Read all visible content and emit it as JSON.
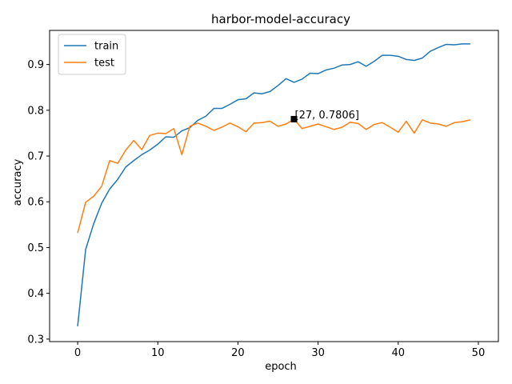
{
  "chart_data": {
    "type": "line",
    "title": "harbor-model-accuracy",
    "xlabel": "epoch",
    "ylabel": "accuracy",
    "xlim": [
      -3.5,
      52.5
    ],
    "ylim": [
      0.2945,
      0.9745
    ],
    "xticks": [
      0,
      10,
      20,
      30,
      40,
      50
    ],
    "yticks": [
      0.3,
      0.4,
      0.5,
      0.6,
      0.7,
      0.8,
      0.9
    ],
    "ytick_labels": [
      "0.3",
      "0.4",
      "0.5",
      "0.6",
      "0.7",
      "0.8",
      "0.9"
    ],
    "legend_position": "upper-left",
    "grid": false,
    "x": [
      0,
      1,
      2,
      3,
      4,
      5,
      6,
      7,
      8,
      9,
      10,
      11,
      12,
      13,
      14,
      15,
      16,
      17,
      18,
      19,
      20,
      21,
      22,
      23,
      24,
      25,
      26,
      27,
      28,
      29,
      30,
      31,
      32,
      33,
      34,
      35,
      36,
      37,
      38,
      39,
      40,
      41,
      42,
      43,
      44,
      45,
      46,
      47,
      48,
      49
    ],
    "series": [
      {
        "name": "train",
        "color": "#1f77b4",
        "values": [
          0.328,
          0.496,
          0.552,
          0.597,
          0.628,
          0.649,
          0.676,
          0.69,
          0.703,
          0.713,
          0.726,
          0.742,
          0.741,
          0.755,
          0.762,
          0.778,
          0.787,
          0.804,
          0.804,
          0.813,
          0.823,
          0.825,
          0.838,
          0.836,
          0.841,
          0.854,
          0.869,
          0.861,
          0.868,
          0.881,
          0.88,
          0.888,
          0.892,
          0.899,
          0.9,
          0.906,
          0.896,
          0.907,
          0.92,
          0.92,
          0.918,
          0.911,
          0.909,
          0.914,
          0.929,
          0.937,
          0.944,
          0.943,
          0.945,
          0.945
        ]
      },
      {
        "name": "test",
        "color": "#ff7f0e",
        "values": [
          0.532,
          0.599,
          0.612,
          0.634,
          0.69,
          0.684,
          0.713,
          0.734,
          0.714,
          0.745,
          0.75,
          0.749,
          0.76,
          0.703,
          0.765,
          0.772,
          0.765,
          0.756,
          0.763,
          0.772,
          0.764,
          0.753,
          0.772,
          0.773,
          0.776,
          0.765,
          0.77,
          0.7806,
          0.76,
          0.765,
          0.77,
          0.764,
          0.758,
          0.763,
          0.774,
          0.771,
          0.758,
          0.769,
          0.773,
          0.763,
          0.752,
          0.776,
          0.75,
          0.779,
          0.772,
          0.77,
          0.765,
          0.773,
          0.775,
          0.779
        ]
      }
    ],
    "annotation": {
      "x": 27,
      "y": 0.7806,
      "text": "[27, 0.7806]",
      "marker_color": "#000000"
    }
  }
}
